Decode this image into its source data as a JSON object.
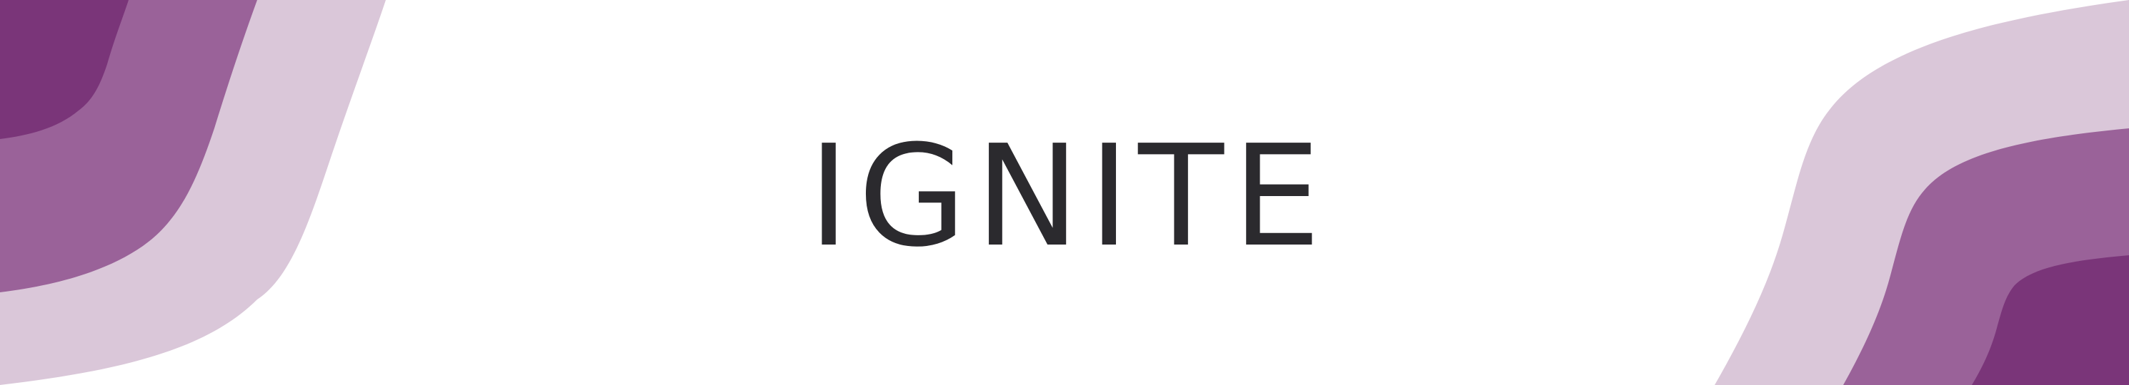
{
  "banner": {
    "title": "IGNITE"
  },
  "colors": {
    "background": "#ffffff",
    "title_text": "#2b2a2e",
    "wave_dark": "#7a3579",
    "wave_mid": "#9a6299",
    "wave_light": "#dac7d9"
  }
}
